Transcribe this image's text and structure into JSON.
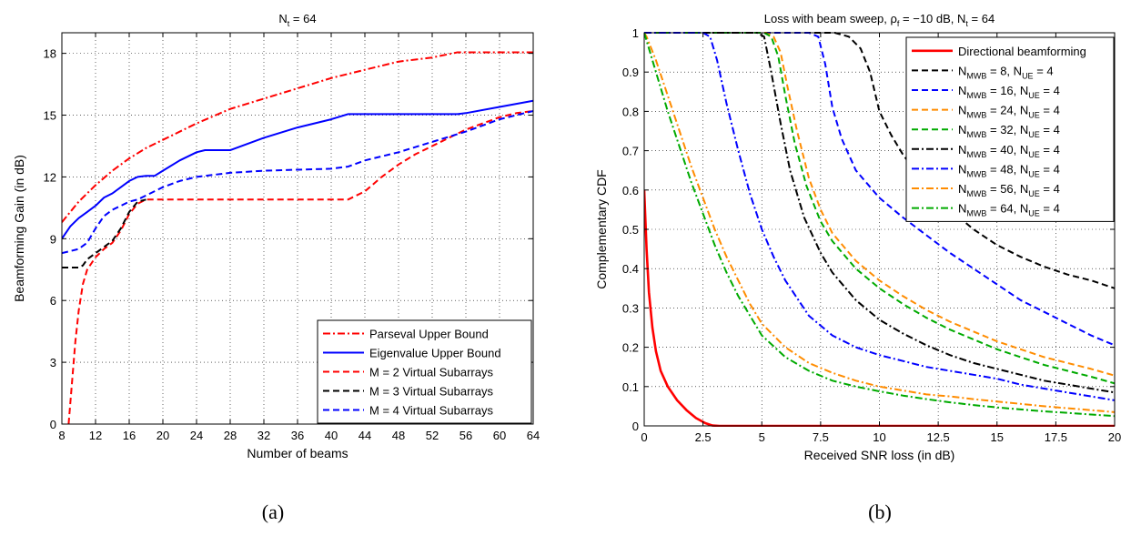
{
  "captions": [
    "(a)",
    "(b)"
  ],
  "chart_data": [
    {
      "type": "line",
      "title": "N_t = 64",
      "title_parts": {
        "main": "N",
        "sub": "t",
        "rest": " = 64"
      },
      "xlabel": "Number of beams",
      "ylabel": "Beamforming Gain (in dB)",
      "xlim": [
        8,
        64
      ],
      "ylim": [
        0,
        19
      ],
      "xticks": [
        8,
        12,
        16,
        20,
        24,
        28,
        32,
        36,
        40,
        44,
        48,
        52,
        56,
        60,
        64
      ],
      "yticks": [
        0,
        3,
        6,
        9,
        12,
        15,
        18
      ],
      "grid": true,
      "legend_position": "bottom-right",
      "series": [
        {
          "name": "Parseval Upper Bound",
          "color": "#ff0000",
          "dash": "dashdot",
          "x": [
            8,
            10,
            12,
            14,
            16,
            18,
            20,
            24,
            28,
            32,
            36,
            40,
            44,
            48,
            52,
            55,
            56,
            60,
            64
          ],
          "y": [
            9.8,
            10.8,
            11.6,
            12.3,
            12.9,
            13.4,
            13.8,
            14.6,
            15.3,
            15.8,
            16.3,
            16.8,
            17.2,
            17.6,
            17.8,
            18.05,
            18.05,
            18.05,
            18.05
          ]
        },
        {
          "name": "Eigenvalue Upper Bound",
          "color": "#0000ff",
          "dash": "solid",
          "x": [
            8,
            9,
            10,
            11,
            12,
            13,
            14,
            15,
            16,
            17,
            18,
            19,
            20,
            22,
            24,
            25,
            26,
            28,
            32,
            36,
            40,
            42,
            44,
            48,
            52,
            55,
            56,
            60,
            64
          ],
          "y": [
            9.0,
            9.6,
            10.0,
            10.3,
            10.6,
            11.0,
            11.2,
            11.5,
            11.8,
            12.0,
            12.05,
            12.05,
            12.3,
            12.8,
            13.2,
            13.3,
            13.3,
            13.3,
            13.9,
            14.4,
            14.8,
            15.05,
            15.05,
            15.05,
            15.05,
            15.05,
            15.1,
            15.4,
            15.7
          ]
        },
        {
          "name": "M = 2 Virtual Subarrays",
          "color": "#ff0000",
          "dash": "dashed",
          "x": [
            8.8,
            9.2,
            9.6,
            10,
            10.5,
            11,
            11.5,
            12,
            13,
            14,
            15,
            16,
            17,
            18,
            20,
            24,
            28,
            32,
            36,
            40,
            42,
            44,
            46,
            48,
            50,
            52,
            54,
            56,
            58,
            60,
            62,
            64
          ],
          "y": [
            0,
            2.0,
            4.0,
            5.5,
            6.8,
            7.5,
            7.8,
            8.1,
            8.5,
            8.8,
            9.4,
            10.2,
            10.7,
            10.9,
            10.9,
            10.9,
            10.9,
            10.9,
            10.9,
            10.9,
            10.9,
            11.3,
            12.0,
            12.6,
            13.1,
            13.5,
            13.9,
            14.3,
            14.6,
            14.9,
            15.1,
            15.2
          ]
        },
        {
          "name": "M = 3 Virtual Subarrays",
          "color": "#000000",
          "dash": "dashed",
          "x": [
            8,
            9,
            10,
            10.5,
            11,
            12,
            13,
            14,
            15,
            16,
            17,
            18
          ],
          "y": [
            7.6,
            7.6,
            7.6,
            7.7,
            8.0,
            8.3,
            8.6,
            8.9,
            9.5,
            10.3,
            10.8,
            10.9
          ]
        },
        {
          "name": "M = 4 Virtual Subarrays",
          "color": "#0000ff",
          "dash": "dashed",
          "x": [
            8,
            9,
            10,
            11,
            12,
            13,
            14,
            15,
            16,
            17,
            18,
            20,
            22,
            24,
            28,
            32,
            36,
            40,
            42,
            44,
            48,
            52,
            56,
            60,
            64
          ],
          "y": [
            8.3,
            8.4,
            8.5,
            8.8,
            9.5,
            10.1,
            10.4,
            10.6,
            10.8,
            10.9,
            11.1,
            11.5,
            11.8,
            12.0,
            12.2,
            12.3,
            12.35,
            12.4,
            12.5,
            12.8,
            13.2,
            13.7,
            14.2,
            14.8,
            15.2
          ]
        }
      ]
    },
    {
      "type": "line",
      "title": "Loss with beam sweep, ρ_f = −10 dB, N_t = 64",
      "title_parts": {
        "a": "Loss with beam sweep, ρ",
        "a_sub": "f",
        "b": " = −10 dB, N",
        "b_sub": "t",
        "c": " = 64"
      },
      "xlabel": "Received SNR loss (in dB)",
      "ylabel": "Complementary CDF",
      "xlim": [
        0,
        20
      ],
      "ylim": [
        0,
        1
      ],
      "xticks": [
        0,
        2.5,
        5,
        7.5,
        10,
        12.5,
        15,
        17.5,
        20
      ],
      "xtick_labels": [
        "0",
        "2.5",
        "5",
        "7.5",
        "10",
        "12.5",
        "15",
        "17.5",
        "20"
      ],
      "yticks": [
        0,
        0.1,
        0.2,
        0.3,
        0.4,
        0.5,
        0.6,
        0.7,
        0.8,
        0.9,
        1
      ],
      "ytick_labels": [
        "0",
        "0.1",
        "0.2",
        "0.3",
        "0.4",
        "0.5",
        "0.6",
        "0.7",
        "0.8",
        "0.9",
        "1"
      ],
      "grid": true,
      "legend_position": "top-right",
      "series": [
        {
          "name": "Directional beamforming",
          "color": "#ff0000",
          "dash": "solid",
          "width": 2.6,
          "x": [
            0,
            0.1,
            0.2,
            0.35,
            0.5,
            0.7,
            1.0,
            1.4,
            1.8,
            2.2,
            2.6,
            2.9,
            3.2,
            20
          ],
          "y": [
            0.6,
            0.45,
            0.34,
            0.25,
            0.19,
            0.14,
            0.1,
            0.065,
            0.04,
            0.02,
            0.007,
            0.001,
            0,
            0
          ]
        },
        {
          "name": "N_MWB = 8, N_UE = 4",
          "label_parts": {
            "a": "N",
            "a_sub": "MWB",
            "b": " = 8, N",
            "b_sub": "UE",
            "c": " = 4"
          },
          "color": "#000000",
          "dash": "dashed",
          "x": [
            0,
            7.5,
            8.1,
            8.7,
            9.2,
            9.6,
            10.0,
            10.5,
            11.0,
            11.5,
            12.0,
            13.0,
            14.0,
            15.0,
            16.0,
            17.0,
            18.0,
            19.0,
            20.0
          ],
          "y": [
            1,
            1,
            1,
            0.99,
            0.96,
            0.9,
            0.8,
            0.74,
            0.69,
            0.65,
            0.61,
            0.55,
            0.5,
            0.46,
            0.43,
            0.405,
            0.385,
            0.37,
            0.35
          ]
        },
        {
          "name": "N_MWB = 16, N_UE = 4",
          "label_parts": {
            "a": "N",
            "a_sub": "MWB",
            "b": " = 16, N",
            "b_sub": "UE",
            "c": " = 4"
          },
          "color": "#0000ff",
          "dash": "dashed",
          "x": [
            0,
            7.0,
            7.4,
            7.7,
            8.0,
            8.4,
            9.0,
            10.0,
            11.0,
            12.0,
            13.0,
            14.0,
            15.0,
            16.0,
            17.0,
            18.0,
            19.0,
            20.0
          ],
          "y": [
            1,
            1,
            0.99,
            0.92,
            0.81,
            0.73,
            0.65,
            0.58,
            0.53,
            0.485,
            0.44,
            0.4,
            0.36,
            0.32,
            0.29,
            0.26,
            0.23,
            0.205
          ]
        },
        {
          "name": "N_MWB = 24, N_UE = 4",
          "label_parts": {
            "a": "N",
            "a_sub": "MWB",
            "b": " = 24, N",
            "b_sub": "UE",
            "c": " = 4"
          },
          "color": "#ff8c00",
          "dash": "dashed",
          "x": [
            0,
            5.2,
            5.5,
            5.8,
            6.1,
            6.5,
            7.0,
            7.5,
            8.0,
            9.0,
            10.0,
            11.0,
            12.0,
            13.0,
            14.0,
            15.0,
            16.0,
            17.0,
            18.0,
            19.0,
            20.0
          ],
          "y": [
            1,
            1,
            0.99,
            0.95,
            0.86,
            0.75,
            0.63,
            0.55,
            0.49,
            0.42,
            0.37,
            0.33,
            0.295,
            0.265,
            0.24,
            0.215,
            0.195,
            0.175,
            0.16,
            0.145,
            0.128
          ]
        },
        {
          "name": "N_MWB = 32, N_UE = 4",
          "label_parts": {
            "a": "N",
            "a_sub": "MWB",
            "b": " = 32, N",
            "b_sub": "UE",
            "c": " = 4"
          },
          "color": "#00aa00",
          "dash": "dashed",
          "x": [
            0,
            5.1,
            5.4,
            5.7,
            6.0,
            6.4,
            6.9,
            7.5,
            8.0,
            9.0,
            10.0,
            11.0,
            12.0,
            13.0,
            14.0,
            15.0,
            16.0,
            17.0,
            18.0,
            19.0,
            20.0
          ],
          "y": [
            1,
            1,
            0.99,
            0.94,
            0.84,
            0.72,
            0.61,
            0.52,
            0.47,
            0.4,
            0.35,
            0.31,
            0.275,
            0.245,
            0.22,
            0.195,
            0.175,
            0.155,
            0.14,
            0.125,
            0.108
          ]
        },
        {
          "name": "N_MWB = 40, N_UE = 4",
          "label_parts": {
            "a": "N",
            "a_sub": "MWB",
            "b": " = 40, N",
            "b_sub": "UE",
            "c": " = 4"
          },
          "color": "#000000",
          "dash": "dashdot",
          "x": [
            0,
            4.8,
            5.1,
            5.4,
            5.8,
            6.2,
            6.8,
            7.5,
            8.0,
            9.0,
            10.0,
            11.0,
            12.0,
            13.0,
            14.0,
            15.0,
            16.0,
            17.0,
            18.0,
            19.0,
            20.0
          ],
          "y": [
            1,
            1,
            0.99,
            0.9,
            0.77,
            0.65,
            0.53,
            0.44,
            0.39,
            0.32,
            0.27,
            0.235,
            0.205,
            0.18,
            0.16,
            0.145,
            0.13,
            0.115,
            0.105,
            0.095,
            0.085
          ]
        },
        {
          "name": "N_MWB = 48, N_UE = 4",
          "label_parts": {
            "a": "N",
            "a_sub": "MWB",
            "b": " = 48, N",
            "b_sub": "UE",
            "c": " = 4"
          },
          "color": "#0000ff",
          "dash": "dashdot",
          "x": [
            0,
            2.5,
            2.8,
            3.1,
            3.5,
            4.0,
            4.5,
            5.0,
            5.5,
            6.0,
            7.0,
            8.0,
            9.0,
            10.0,
            11.0,
            12.0,
            13.0,
            14.0,
            15.0,
            16.0,
            17.0,
            18.0,
            19.0,
            20.0
          ],
          "y": [
            1,
            1,
            0.99,
            0.93,
            0.82,
            0.7,
            0.59,
            0.5,
            0.43,
            0.37,
            0.28,
            0.23,
            0.2,
            0.18,
            0.165,
            0.15,
            0.14,
            0.13,
            0.12,
            0.105,
            0.095,
            0.085,
            0.075,
            0.065
          ]
        },
        {
          "name": "N_MWB = 56, N_UE = 4",
          "label_parts": {
            "a": "N",
            "a_sub": "MWB",
            "b": " = 56, N",
            "b_sub": "UE",
            "c": " = 4"
          },
          "color": "#ff8c00",
          "dash": "dashdot",
          "x": [
            0,
            0.1,
            0.5,
            1.0,
            1.5,
            2.0,
            2.5,
            3.0,
            3.5,
            4.0,
            4.5,
            5.0,
            6.0,
            7.0,
            8.0,
            9.0,
            10.0,
            11.0,
            12.0,
            13.0,
            14.0,
            15.0,
            16.0,
            17.0,
            18.0,
            19.0,
            20.0
          ],
          "y": [
            1,
            0.99,
            0.93,
            0.84,
            0.75,
            0.66,
            0.58,
            0.5,
            0.43,
            0.37,
            0.31,
            0.26,
            0.2,
            0.16,
            0.135,
            0.115,
            0.1,
            0.09,
            0.08,
            0.075,
            0.068,
            0.062,
            0.056,
            0.05,
            0.045,
            0.04,
            0.035
          ]
        },
        {
          "name": "N_MWB = 64, N_UE = 4",
          "label_parts": {
            "a": "N",
            "a_sub": "MWB",
            "b": " = 64, N",
            "b_sub": "UE",
            "c": " = 4"
          },
          "color": "#00aa00",
          "dash": "dashdot",
          "x": [
            0,
            0.1,
            0.5,
            1.0,
            1.5,
            2.0,
            2.5,
            3.0,
            3.5,
            4.0,
            4.5,
            5.0,
            6.0,
            7.0,
            8.0,
            9.0,
            10.0,
            11.0,
            12.0,
            13.0,
            14.0,
            15.0,
            16.0,
            17.0,
            18.0,
            19.0,
            20.0
          ],
          "y": [
            1,
            0.98,
            0.9,
            0.8,
            0.71,
            0.62,
            0.54,
            0.46,
            0.39,
            0.33,
            0.28,
            0.23,
            0.175,
            0.14,
            0.115,
            0.1,
            0.088,
            0.077,
            0.068,
            0.06,
            0.053,
            0.047,
            0.042,
            0.037,
            0.033,
            0.029,
            0.025
          ]
        }
      ]
    }
  ]
}
